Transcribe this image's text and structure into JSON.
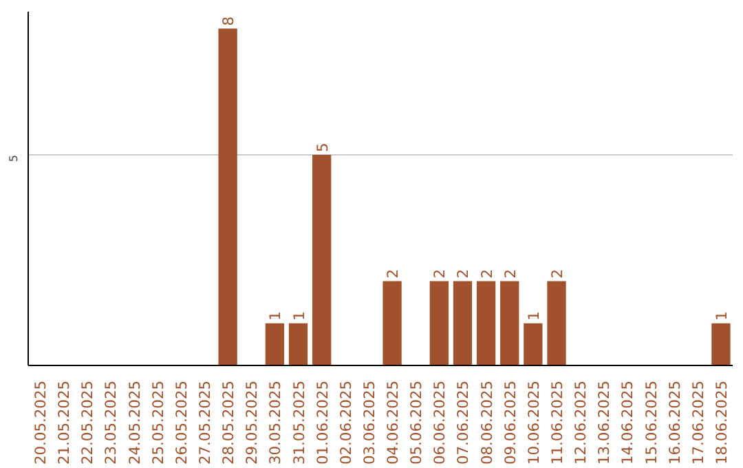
{
  "chart_data": {
    "type": "bar",
    "categories": [
      "20.05.2025",
      "21.05.2025",
      "22.05.2025",
      "23.05.2025",
      "24.05.2025",
      "25.05.2025",
      "26.05.2025",
      "27.05.2025",
      "28.05.2025",
      "29.05.2025",
      "30.05.2025",
      "31.05.2025",
      "01.06.2025",
      "02.06.2025",
      "03.06.2025",
      "04.06.2025",
      "05.06.2025",
      "06.06.2025",
      "07.06.2025",
      "08.06.2025",
      "09.06.2025",
      "10.06.2025",
      "11.06.2025",
      "12.06.2025",
      "13.06.2025",
      "14.06.2025",
      "15.06.2025",
      "16.06.2025",
      "17.06.2025",
      "18.06.2025"
    ],
    "values": [
      0,
      0,
      0,
      0,
      0,
      0,
      0,
      0,
      8,
      0,
      1,
      1,
      5,
      0,
      0,
      2,
      0,
      2,
      2,
      2,
      2,
      1,
      2,
      0,
      0,
      0,
      0,
      0,
      0,
      1
    ],
    "value_labels": [
      null,
      null,
      null,
      null,
      null,
      null,
      null,
      null,
      "8",
      null,
      "1",
      "1",
      "5",
      null,
      null,
      "2",
      null,
      "2",
      "2",
      "2",
      "2",
      "1",
      "2",
      null,
      null,
      null,
      null,
      null,
      null,
      "1"
    ],
    "color": "#a0522d",
    "ylim": [
      0,
      8.4
    ],
    "yticks": [
      5
    ],
    "grid": "y"
  }
}
